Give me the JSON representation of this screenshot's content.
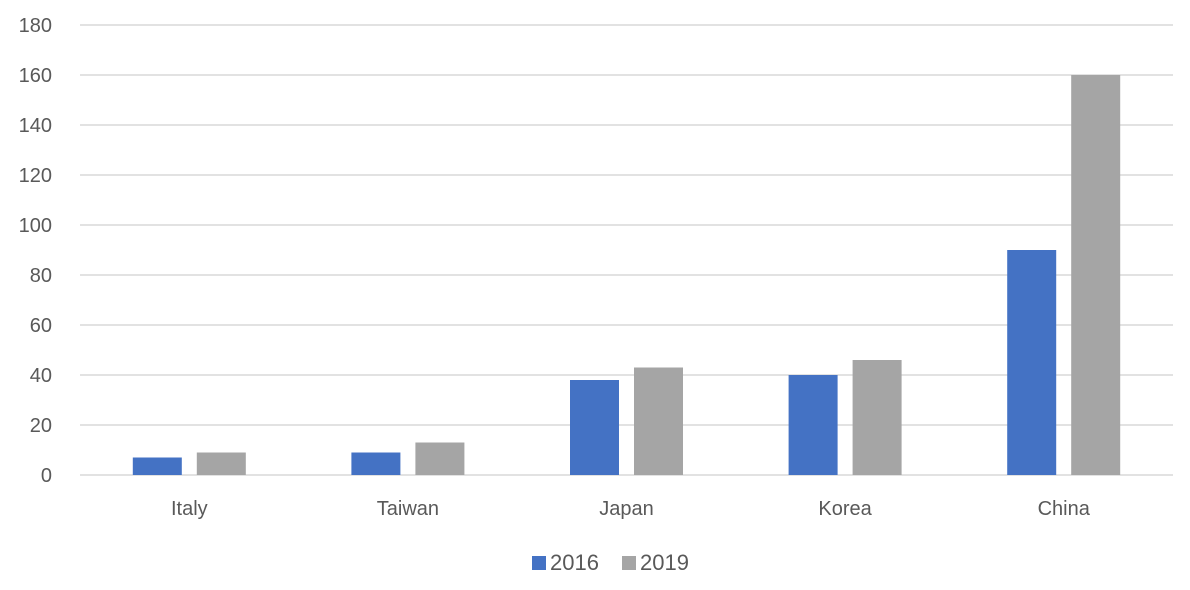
{
  "chart_data": {
    "type": "bar",
    "title": "",
    "xlabel": "",
    "ylabel": "",
    "categories": [
      "Italy",
      "Taiwan",
      "Japan",
      "Korea",
      "China"
    ],
    "series": [
      {
        "name": "2016",
        "color": "#4472C4",
        "values": [
          7,
          9,
          38,
          40,
          90
        ]
      },
      {
        "name": "2019",
        "color": "#A5A5A5",
        "values": [
          9,
          13,
          43,
          46,
          160
        ]
      }
    ],
    "ylim": [
      0,
      180
    ],
    "yticks": [
      0,
      20,
      40,
      60,
      80,
      100,
      120,
      140,
      160,
      180
    ],
    "grid": true,
    "legend": "bottom-center"
  }
}
